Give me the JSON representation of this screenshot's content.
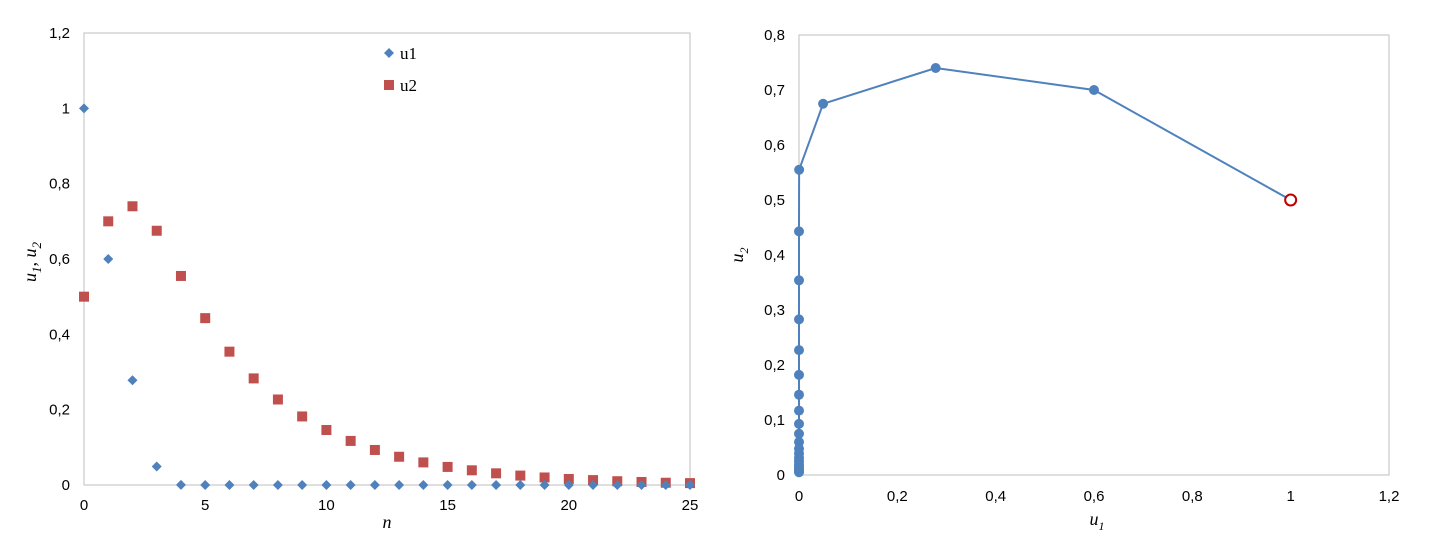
{
  "chart_data": [
    {
      "type": "scatter",
      "xlim": [
        0,
        25
      ],
      "ylim": [
        0,
        1.2
      ],
      "xticks": [
        "0",
        "5",
        "10",
        "15",
        "20",
        "25"
      ],
      "yticks": [
        "0",
        "0,2",
        "0,4",
        "0,6",
        "0,8",
        "1",
        "1,2"
      ],
      "xlabel": "n",
      "ylabel_main": "u",
      "ylabel_sub1": "1",
      "ylabel_sep": ", ",
      "ylabel_sub2": "2",
      "legend_position": "top-center",
      "grid": false,
      "series": [
        {
          "name": "u1",
          "marker": "diamond",
          "color": "#4f81bd",
          "x": [
            0,
            1,
            2,
            3,
            4,
            5,
            6,
            7,
            8,
            9,
            10,
            11,
            12,
            13,
            14,
            15,
            16,
            17,
            18,
            19,
            20,
            21,
            22,
            23,
            24,
            25
          ],
          "y": [
            1,
            0.6,
            0.278,
            0.049,
            0.0003,
            0,
            0,
            0,
            0,
            0,
            0,
            0,
            0,
            0,
            0,
            0,
            0,
            0,
            0,
            0,
            0,
            0,
            0,
            0,
            0,
            0
          ]
        },
        {
          "name": "u2",
          "marker": "square",
          "color": "#c0504d",
          "x": [
            0,
            1,
            2,
            3,
            4,
            5,
            6,
            7,
            8,
            9,
            10,
            11,
            12,
            13,
            14,
            15,
            16,
            17,
            18,
            19,
            20,
            21,
            22,
            23,
            24,
            25
          ],
          "y": [
            0.5,
            0.7,
            0.74,
            0.675,
            0.555,
            0.443,
            0.354,
            0.283,
            0.227,
            0.182,
            0.146,
            0.117,
            0.093,
            0.075,
            0.06,
            0.048,
            0.039,
            0.031,
            0.025,
            0.02,
            0.016,
            0.013,
            0.01,
            0.008,
            0.006,
            0.005
          ]
        }
      ]
    },
    {
      "type": "line",
      "xlim": [
        0,
        1.2
      ],
      "ylim": [
        0,
        0.8
      ],
      "xticks": [
        "0",
        "0,2",
        "0,4",
        "0,6",
        "0,8",
        "1",
        "1,2"
      ],
      "yticks": [
        "0",
        "0,1",
        "0,2",
        "0,3",
        "0,4",
        "0,5",
        "0,6",
        "0,7",
        "0,8"
      ],
      "xlabel_main": "u",
      "xlabel_sub": "1",
      "ylabel_main": "u",
      "ylabel_sub": "2",
      "grid": false,
      "line_color": "#4f81bd",
      "start_marker_color": "#c00000",
      "series": [
        {
          "x": [
            1,
            0.6,
            0.278,
            0.049,
            0.0003,
            0,
            0,
            0,
            0,
            0,
            0,
            0,
            0,
            0,
            0,
            0,
            0,
            0,
            0,
            0,
            0,
            0,
            0,
            0,
            0,
            0
          ],
          "y": [
            0.5,
            0.7,
            0.74,
            0.675,
            0.555,
            0.443,
            0.354,
            0.283,
            0.227,
            0.182,
            0.146,
            0.117,
            0.093,
            0.075,
            0.06,
            0.048,
            0.039,
            0.031,
            0.025,
            0.02,
            0.016,
            0.013,
            0.01,
            0.008,
            0.006,
            0.005
          ]
        }
      ]
    }
  ]
}
